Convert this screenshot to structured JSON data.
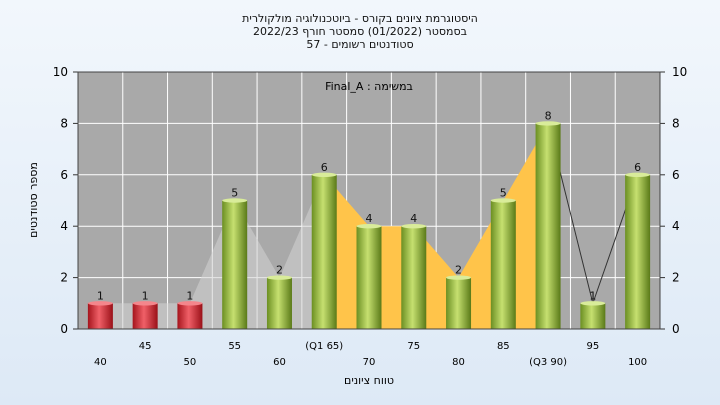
{
  "title_lines": [
    "היסטוגרמת ציונים בקורס - ביוטכנולוגיה מולקולרית",
    "בסמסטר  (01/2022)  סמסטר חורף 2022/23",
    "סטודנטים רשומים - 57"
  ],
  "chart_data": {
    "type": "bar",
    "annotation": "במשימה : Final_A",
    "xlabel": "טווח ציונים",
    "ylabel": "מספר סטודנטים",
    "ylim": [
      0,
      10
    ],
    "y_ticks": [
      0,
      2,
      4,
      6,
      8,
      10
    ],
    "grid": true,
    "categories": [
      "40",
      "45",
      "50",
      "55",
      "60",
      "(Q1 65)",
      "70",
      "75",
      "80",
      "85",
      "(Q3 90)",
      "95",
      "100"
    ],
    "values": [
      1,
      1,
      1,
      5,
      2,
      6,
      4,
      4,
      2,
      5,
      8,
      1,
      6
    ],
    "bar_colors": [
      "#e2323c",
      "#e2323c",
      "#e2323c",
      "#9cc23a",
      "#9cc23a",
      "#9cc23a",
      "#9cc23a",
      "#9cc23a",
      "#9cc23a",
      "#9cc23a",
      "#9cc23a",
      "#9cc23a",
      "#9cc23a"
    ],
    "iqr_band_color": "#ffc44a",
    "outline_color": "#d4d4d4"
  }
}
